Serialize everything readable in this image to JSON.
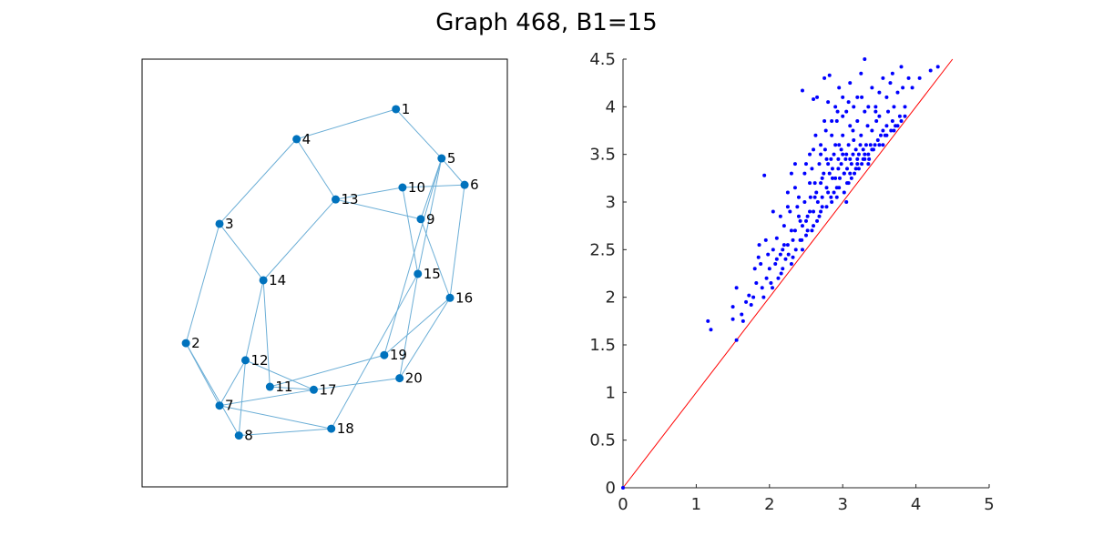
{
  "figure": {
    "title": "Graph 468, B1=15"
  },
  "colors": {
    "node": "#0072BD",
    "edge": "#6BAED6",
    "scatter": "#0000FF",
    "diagonal": "#FF0000",
    "axis": "#262626",
    "frame": "#000000"
  },
  "chart_data": [
    {
      "type": "network",
      "nodes": [
        {
          "id": "1",
          "x": 0.695,
          "y": 0.883
        },
        {
          "id": "2",
          "x": 0.12,
          "y": 0.336
        },
        {
          "id": "3",
          "x": 0.212,
          "y": 0.615
        },
        {
          "id": "4",
          "x": 0.423,
          "y": 0.813
        },
        {
          "id": "5",
          "x": 0.82,
          "y": 0.768
        },
        {
          "id": "6",
          "x": 0.883,
          "y": 0.706
        },
        {
          "id": "7",
          "x": 0.212,
          "y": 0.19
        },
        {
          "id": "8",
          "x": 0.265,
          "y": 0.12
        },
        {
          "id": "9",
          "x": 0.763,
          "y": 0.626
        },
        {
          "id": "10",
          "x": 0.713,
          "y": 0.7
        },
        {
          "id": "11",
          "x": 0.35,
          "y": 0.234
        },
        {
          "id": "12",
          "x": 0.283,
          "y": 0.296
        },
        {
          "id": "13",
          "x": 0.53,
          "y": 0.672
        },
        {
          "id": "14",
          "x": 0.332,
          "y": 0.483
        },
        {
          "id": "15",
          "x": 0.755,
          "y": 0.498
        },
        {
          "id": "16",
          "x": 0.843,
          "y": 0.442
        },
        {
          "id": "17",
          "x": 0.47,
          "y": 0.227
        },
        {
          "id": "18",
          "x": 0.518,
          "y": 0.136
        },
        {
          "id": "19",
          "x": 0.663,
          "y": 0.308
        },
        {
          "id": "20",
          "x": 0.705,
          "y": 0.254
        }
      ],
      "edges": [
        [
          "1",
          "4"
        ],
        [
          "1",
          "5"
        ],
        [
          "4",
          "3"
        ],
        [
          "4",
          "13"
        ],
        [
          "3",
          "14"
        ],
        [
          "3",
          "2"
        ],
        [
          "2",
          "7"
        ],
        [
          "2",
          "8"
        ],
        [
          "7",
          "12"
        ],
        [
          "7",
          "17"
        ],
        [
          "7",
          "18"
        ],
        [
          "8",
          "12"
        ],
        [
          "8",
          "18"
        ],
        [
          "12",
          "14"
        ],
        [
          "12",
          "17"
        ],
        [
          "14",
          "13"
        ],
        [
          "14",
          "11"
        ],
        [
          "11",
          "17"
        ],
        [
          "11",
          "19"
        ],
        [
          "13",
          "10"
        ],
        [
          "13",
          "9"
        ],
        [
          "10",
          "6"
        ],
        [
          "10",
          "15"
        ],
        [
          "9",
          "5"
        ],
        [
          "9",
          "16"
        ],
        [
          "5",
          "6"
        ],
        [
          "5",
          "15"
        ],
        [
          "5",
          "19"
        ],
        [
          "6",
          "16"
        ],
        [
          "15",
          "18"
        ],
        [
          "15",
          "20"
        ],
        [
          "16",
          "20"
        ],
        [
          "16",
          "19"
        ],
        [
          "17",
          "20"
        ]
      ]
    },
    {
      "type": "scatter",
      "xlim": [
        0,
        5
      ],
      "ylim": [
        0,
        4.5
      ],
      "xticks": [
        0,
        1,
        2,
        3,
        4,
        5
      ],
      "yticks": [
        0,
        0.5,
        1,
        1.5,
        2,
        2.5,
        3,
        3.5,
        4,
        4.5
      ],
      "reference_line": {
        "x": [
          0,
          4.5
        ],
        "y": [
          0,
          4.5
        ]
      },
      "points": [
        [
          0,
          0
        ],
        [
          1.16,
          1.75
        ],
        [
          1.2,
          1.66
        ],
        [
          1.5,
          1.77
        ],
        [
          1.55,
          1.55
        ],
        [
          1.5,
          1.9
        ],
        [
          1.55,
          2.1
        ],
        [
          1.62,
          1.82
        ],
        [
          1.64,
          1.75
        ],
        [
          1.68,
          1.95
        ],
        [
          1.72,
          2.02
        ],
        [
          1.75,
          1.92
        ],
        [
          1.78,
          2.0
        ],
        [
          1.8,
          2.3
        ],
        [
          1.82,
          2.15
        ],
        [
          1.85,
          2.42
        ],
        [
          1.86,
          2.55
        ],
        [
          1.9,
          2.1
        ],
        [
          1.93,
          3.28
        ],
        [
          1.95,
          2.6
        ],
        [
          2.0,
          2.3
        ],
        [
          2.02,
          2.15
        ],
        [
          2.05,
          2.5
        ],
        [
          2.08,
          2.35
        ],
        [
          2.1,
          2.62
        ],
        [
          2.12,
          2.2
        ],
        [
          2.15,
          2.45
        ],
        [
          2.18,
          2.3
        ],
        [
          2.2,
          2.75
        ],
        [
          2.22,
          2.4
        ],
        [
          2.25,
          2.95
        ],
        [
          2.25,
          2.55
        ],
        [
          2.3,
          3.3
        ],
        [
          2.3,
          2.7
        ],
        [
          2.32,
          2.42
        ],
        [
          2.35,
          3.15
        ],
        [
          2.4,
          2.85
        ],
        [
          2.42,
          2.6
        ],
        [
          2.45,
          2.5
        ],
        [
          2.45,
          4.17
        ],
        [
          2.48,
          3.0
        ],
        [
          2.5,
          3.4
        ],
        [
          2.5,
          2.65
        ],
        [
          2.55,
          2.9
        ],
        [
          2.55,
          3.2
        ],
        [
          2.58,
          2.7
        ],
        [
          2.6,
          3.55
        ],
        [
          2.62,
          3.05
        ],
        [
          2.65,
          2.8
        ],
        [
          2.65,
          4.1
        ],
        [
          2.7,
          3.6
        ],
        [
          2.7,
          3.2
        ],
        [
          2.72,
          2.95
        ],
        [
          2.75,
          4.3
        ],
        [
          2.75,
          3.85
        ],
        [
          2.78,
          3.45
        ],
        [
          2.8,
          4.05
        ],
        [
          2.8,
          3.1
        ],
        [
          2.82,
          4.33
        ],
        [
          2.85,
          3.7
        ],
        [
          2.85,
          3.0
        ],
        [
          2.88,
          3.5
        ],
        [
          2.9,
          4.0
        ],
        [
          2.9,
          3.25
        ],
        [
          2.92,
          3.85
        ],
        [
          2.95,
          3.6
        ],
        [
          2.95,
          3.15
        ],
        [
          2.98,
          3.4
        ],
        [
          3.0,
          4.1
        ],
        [
          3.0,
          3.7
        ],
        [
          3.02,
          3.3
        ],
        [
          3.05,
          3.95
        ],
        [
          3.05,
          3.5
        ],
        [
          3.08,
          3.2
        ],
        [
          3.1,
          4.25
        ],
        [
          3.1,
          3.8
        ],
        [
          3.12,
          3.4
        ],
        [
          3.15,
          3.65
        ],
        [
          3.18,
          3.35
        ],
        [
          3.2,
          4.1
        ],
        [
          3.2,
          3.85
        ],
        [
          3.22,
          3.5
        ],
        [
          3.25,
          4.35
        ],
        [
          3.25,
          3.7
        ],
        [
          3.28,
          3.45
        ],
        [
          3.3,
          4.5
        ],
        [
          3.3,
          3.95
        ],
        [
          3.32,
          3.6
        ],
        [
          3.35,
          3.5
        ],
        [
          3.4,
          4.2
        ],
        [
          3.4,
          3.75
        ],
        [
          3.42,
          3.55
        ],
        [
          3.45,
          4.0
        ],
        [
          3.48,
          3.65
        ],
        [
          3.5,
          3.9
        ],
        [
          3.55,
          4.3
        ],
        [
          3.55,
          3.75
        ],
        [
          3.6,
          4.1
        ],
        [
          3.6,
          3.8
        ],
        [
          3.65,
          4.25
        ],
        [
          3.68,
          3.85
        ],
        [
          3.7,
          4.0
        ],
        [
          3.75,
          4.15
        ],
        [
          3.78,
          3.9
        ],
        [
          3.8,
          4.42
        ],
        [
          3.82,
          4.2
        ],
        [
          3.85,
          4.0
        ],
        [
          3.9,
          4.3
        ],
        [
          3.95,
          4.2
        ],
        [
          4.05,
          4.3
        ],
        [
          4.2,
          4.38
        ],
        [
          4.3,
          4.42
        ],
        [
          2.05,
          2.9
        ],
        [
          2.15,
          2.85
        ],
        [
          2.28,
          2.9
        ],
        [
          2.38,
          2.95
        ],
        [
          2.52,
          2.85
        ],
        [
          2.6,
          2.75
        ],
        [
          2.68,
          2.85
        ],
        [
          2.72,
          3.05
        ],
        [
          2.78,
          3.15
        ],
        [
          2.82,
          3.3
        ],
        [
          2.88,
          3.1
        ],
        [
          2.92,
          3.05
        ],
        [
          2.96,
          3.25
        ],
        [
          3.02,
          3.1
        ],
        [
          3.06,
          3.2
        ],
        [
          3.12,
          3.25
        ],
        [
          3.16,
          3.3
        ],
        [
          3.22,
          3.35
        ],
        [
          3.26,
          3.4
        ],
        [
          3.3,
          3.45
        ],
        [
          3.36,
          3.45
        ],
        [
          3.44,
          3.6
        ],
        [
          3.52,
          3.7
        ],
        [
          3.58,
          3.7
        ],
        [
          3.66,
          3.75
        ],
        [
          3.72,
          3.8
        ],
        [
          1.98,
          2.45
        ],
        [
          2.35,
          2.7
        ],
        [
          2.62,
          3.2
        ],
        [
          2.68,
          3.4
        ],
        [
          2.76,
          3.55
        ],
        [
          2.84,
          3.45
        ],
        [
          2.9,
          3.6
        ],
        [
          2.98,
          3.55
        ],
        [
          3.08,
          3.6
        ],
        [
          3.14,
          3.75
        ],
        [
          3.24,
          3.6
        ],
        [
          3.34,
          3.8
        ],
        [
          3.38,
          3.6
        ],
        [
          3.46,
          3.85
        ],
        [
          2.45,
          2.75
        ],
        [
          2.58,
          3.35
        ],
        [
          2.66,
          3.0
        ],
        [
          2.74,
          3.3
        ],
        [
          2.86,
          3.35
        ],
        [
          2.94,
          3.45
        ],
        [
          3.04,
          3.45
        ],
        [
          3.1,
          3.45
        ],
        [
          3.18,
          3.55
        ],
        [
          3.28,
          3.55
        ],
        [
          2.2,
          2.55
        ],
        [
          2.32,
          2.6
        ],
        [
          2.42,
          2.8
        ],
        [
          2.5,
          2.8
        ],
        [
          2.56,
          3.05
        ],
        [
          2.64,
          3.1
        ],
        [
          2.72,
          3.25
        ],
        [
          2.8,
          3.4
        ],
        [
          2.86,
          3.25
        ],
        [
          2.94,
          3.35
        ],
        [
          3.0,
          3.5
        ],
        [
          3.06,
          3.35
        ],
        [
          3.14,
          3.5
        ],
        [
          3.2,
          3.45
        ],
        [
          1.88,
          2.35
        ],
        [
          1.96,
          2.2
        ],
        [
          2.1,
          2.4
        ],
        [
          2.18,
          2.5
        ],
        [
          2.26,
          2.45
        ],
        [
          2.36,
          2.5
        ],
        [
          2.44,
          2.6
        ],
        [
          2.52,
          2.7
        ],
        [
          2.6,
          2.9
        ],
        [
          2.7,
          2.9
        ],
        [
          2.78,
          2.95
        ],
        [
          2.84,
          3.05
        ],
        [
          2.92,
          3.15
        ],
        [
          3.02,
          3.3
        ],
        [
          3.1,
          3.3
        ],
        [
          3.2,
          3.4
        ],
        [
          3.3,
          3.5
        ],
        [
          3.4,
          3.55
        ],
        [
          3.5,
          3.6
        ],
        [
          3.6,
          3.7
        ],
        [
          3.7,
          3.75
        ],
        [
          3.8,
          3.85
        ],
        [
          2.4,
          3.05
        ],
        [
          2.55,
          3.5
        ],
        [
          2.7,
          3.5
        ],
        [
          2.85,
          3.85
        ],
        [
          3.0,
          3.9
        ],
        [
          3.15,
          4.0
        ],
        [
          3.35,
          4.0
        ],
        [
          3.45,
          3.95
        ],
        [
          3.62,
          3.95
        ],
        [
          2.25,
          3.1
        ],
        [
          2.35,
          3.4
        ],
        [
          2.48,
          3.3
        ],
        [
          2.63,
          3.7
        ],
        [
          2.77,
          3.75
        ],
        [
          2.93,
          3.95
        ],
        [
          3.08,
          4.05
        ],
        [
          3.26,
          4.1
        ],
        [
          3.5,
          4.15
        ],
        [
          3.68,
          4.35
        ],
        [
          2.6,
          4.08
        ],
        [
          2.95,
          4.2
        ],
        [
          3.05,
          3.0
        ],
        [
          2.3,
          2.35
        ],
        [
          2.16,
          2.25
        ],
        [
          2.04,
          2.1
        ],
        [
          1.92,
          2.0
        ],
        [
          3.35,
          3.4
        ],
        [
          3.55,
          3.6
        ],
        [
          3.75,
          3.8
        ],
        [
          3.85,
          3.9
        ]
      ]
    }
  ]
}
